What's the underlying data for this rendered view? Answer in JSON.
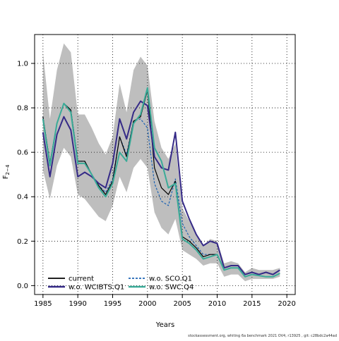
{
  "chart_data": {
    "type": "line",
    "title": "",
    "xlabel": "Years",
    "ylabel_main": "F",
    "ylabel_sub": "2−4",
    "xlim": [
      1983.8,
      2021.2
    ],
    "ylim": [
      -0.04,
      1.13
    ],
    "xticks": [
      "1985",
      "1990",
      "1995",
      "2000",
      "2005",
      "2010",
      "2015",
      "2020"
    ],
    "yticks": [
      "0.0",
      "0.2",
      "0.4",
      "0.6",
      "0.8",
      "1.0"
    ],
    "grid": "dotted",
    "legend_position": "bottom-left",
    "x": [
      1985,
      1986,
      1987,
      1988,
      1989,
      1990,
      1991,
      1992,
      1993,
      1994,
      1995,
      1996,
      1997,
      1998,
      1999,
      2000,
      2001,
      2002,
      2003,
      2004,
      2005,
      2006,
      2007,
      2008,
      2009,
      2010,
      2011,
      2012,
      2013,
      2014,
      2015,
      2016,
      2017,
      2018,
      2019
    ],
    "band": {
      "upper": [
        1.05,
        0.75,
        0.97,
        1.09,
        1.05,
        0.77,
        0.77,
        0.71,
        0.64,
        0.59,
        0.67,
        0.91,
        0.78,
        0.97,
        1.03,
        0.99,
        0.74,
        0.62,
        0.57,
        0.64,
        0.35,
        0.29,
        0.23,
        0.18,
        0.21,
        0.2,
        0.1,
        0.11,
        0.1,
        0.06,
        0.08,
        0.07,
        0.07,
        0.07,
        0.08
      ],
      "lower": [
        0.52,
        0.39,
        0.54,
        0.62,
        0.58,
        0.41,
        0.39,
        0.35,
        0.31,
        0.29,
        0.36,
        0.49,
        0.42,
        0.53,
        0.57,
        0.53,
        0.33,
        0.26,
        0.23,
        0.3,
        0.16,
        0.14,
        0.12,
        0.09,
        0.1,
        0.1,
        0.04,
        0.05,
        0.05,
        0.02,
        0.03,
        0.03,
        0.03,
        0.03,
        0.04
      ],
      "color": "#bebebe"
    },
    "series": [
      {
        "name": "current",
        "color": "#000000",
        "values": [
          0.76,
          0.55,
          0.73,
          0.82,
          0.79,
          0.56,
          0.56,
          0.5,
          0.45,
          0.41,
          0.47,
          0.67,
          0.58,
          0.74,
          0.76,
          0.88,
          0.53,
          0.44,
          0.41,
          0.47,
          0.22,
          0.2,
          0.17,
          0.13,
          0.14,
          0.14,
          0.07,
          0.08,
          0.08,
          0.04,
          0.05,
          0.045,
          0.04,
          0.04,
          0.055
        ]
      },
      {
        "name": "w.o. SCO.Q1",
        "color": "#1e64b4",
        "values": [
          0.76,
          0.55,
          0.73,
          0.82,
          0.79,
          0.56,
          0.56,
          0.5,
          0.45,
          0.42,
          0.48,
          0.67,
          0.59,
          0.74,
          0.75,
          0.71,
          0.46,
          0.38,
          0.36,
          0.48,
          0.28,
          0.22,
          0.18,
          0.14,
          0.14,
          0.14,
          0.07,
          0.08,
          0.08,
          0.04,
          0.05,
          0.045,
          0.04,
          0.04,
          0.055
        ]
      },
      {
        "name": "w.o. WCIBTS.Q1",
        "color": "#352a87",
        "values": [
          0.69,
          0.49,
          0.68,
          0.76,
          0.7,
          0.49,
          0.51,
          0.49,
          0.46,
          0.44,
          0.55,
          0.75,
          0.66,
          0.78,
          0.83,
          0.81,
          0.58,
          0.53,
          0.52,
          0.69,
          0.38,
          0.3,
          0.23,
          0.18,
          0.2,
          0.19,
          0.08,
          0.09,
          0.09,
          0.05,
          0.06,
          0.05,
          0.06,
          0.05,
          0.07
        ]
      },
      {
        "name": "w.o. SWC.Q4",
        "color": "#3aab98",
        "values": [
          0.75,
          0.54,
          0.73,
          0.82,
          0.78,
          0.55,
          0.55,
          0.5,
          0.44,
          0.4,
          0.46,
          0.6,
          0.56,
          0.73,
          0.77,
          0.89,
          0.62,
          0.56,
          0.44,
          0.46,
          0.21,
          0.19,
          0.16,
          0.12,
          0.13,
          0.14,
          0.07,
          0.08,
          0.08,
          0.04,
          0.05,
          0.045,
          0.04,
          0.04,
          0.055
        ]
      }
    ],
    "footnote": "stockassessment.org, whiting 6a benchmark 2021 OV4, r13925 , git: c28bdc2a44ad"
  }
}
